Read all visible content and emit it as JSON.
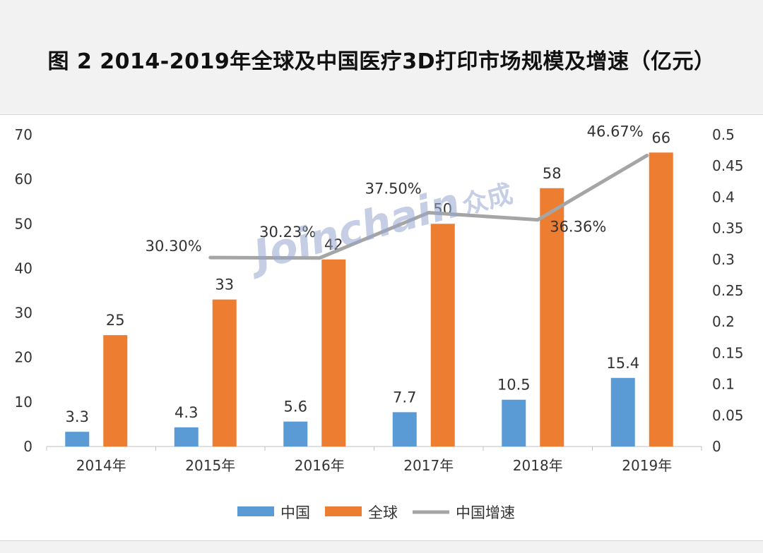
{
  "title": "图 2  2014-2019年全球及中国医疗3D打印市场规模及增速（亿元）",
  "watermark": {
    "text": "Joinchain",
    "mark": "众成"
  },
  "colors": {
    "china": "#5b9bd5",
    "global": "#ed7d31",
    "growth": "#a5a5a5"
  },
  "chart_data": {
    "type": "bar",
    "categories": [
      "2014年",
      "2015年",
      "2016年",
      "2017年",
      "2018年",
      "2019年"
    ],
    "series": [
      {
        "name": "中国",
        "type": "bar",
        "axis": "left",
        "values": [
          3.3,
          4.3,
          5.6,
          7.7,
          10.5,
          15.4
        ],
        "labels": [
          "3.3",
          "4.3",
          "5.6",
          "7.7",
          "10.5",
          "15.4"
        ]
      },
      {
        "name": "全球",
        "type": "bar",
        "axis": "left",
        "values": [
          25,
          33,
          42,
          50,
          58,
          66
        ],
        "labels": [
          "25",
          "33",
          "42",
          "50",
          "58",
          "66"
        ]
      },
      {
        "name": "中国增速",
        "type": "line",
        "axis": "right",
        "values": [
          null,
          0.303,
          0.3023,
          0.375,
          0.3636,
          0.4667
        ],
        "labels": [
          null,
          "30.30%",
          "30.23%",
          "37.50%",
          "36.36%",
          "46.67%"
        ]
      }
    ],
    "y_left": {
      "min": 0,
      "max": 70,
      "ticks": [
        "0",
        "10",
        "20",
        "30",
        "40",
        "50",
        "60",
        "70"
      ]
    },
    "y_right": {
      "min": 0,
      "max": 0.5,
      "ticks": [
        "0",
        "0.05",
        "0.1",
        "0.15",
        "0.2",
        "0.25",
        "0.3",
        "0.35",
        "0.4",
        "0.45",
        "0.5"
      ]
    },
    "grid": false,
    "legend": "bottom"
  }
}
